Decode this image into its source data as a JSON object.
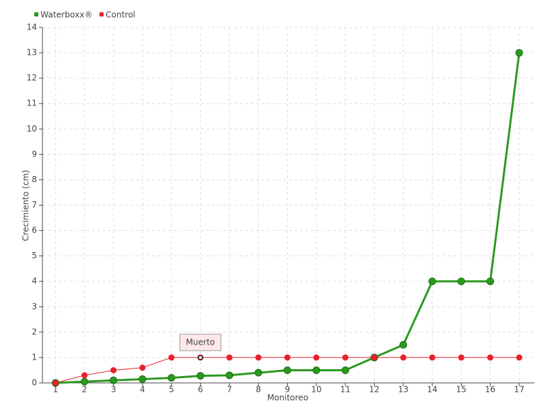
{
  "chart_data": {
    "type": "line",
    "x_label": "Monitoreo",
    "y_label": "Crecimiento (cm)",
    "x": [
      1,
      2,
      3,
      4,
      5,
      6,
      7,
      8,
      9,
      10,
      11,
      12,
      13,
      14,
      15,
      16,
      17
    ],
    "series": [
      {
        "name": "Waterboxx®",
        "color": "#2a9a1f",
        "values": [
          0,
          0.05,
          0.1,
          0.15,
          0.2,
          0.28,
          0.3,
          0.4,
          0.5,
          0.5,
          0.5,
          1,
          1.5,
          4,
          4,
          4,
          13
        ]
      },
      {
        "name": "Control",
        "color": "#e8202e",
        "values": [
          0,
          0.3,
          0.5,
          0.6,
          1,
          1,
          1,
          1,
          1,
          1,
          1,
          1,
          1,
          1,
          1,
          1,
          1
        ]
      }
    ],
    "annotations": [
      {
        "text": "Muerto",
        "x": 6,
        "y": 1
      }
    ],
    "xlim": [
      0.55,
      17.52
    ],
    "xticks": [
      1,
      2,
      3,
      4,
      5,
      6,
      7,
      8,
      9,
      10,
      11,
      12,
      13,
      14,
      15,
      16,
      17
    ],
    "ylim": [
      0,
      14
    ],
    "yticks": [
      0,
      1,
      2,
      3,
      4,
      5,
      6,
      7,
      8,
      9,
      10,
      11,
      12,
      13,
      14
    ],
    "grid": true,
    "legend": "top-left"
  }
}
